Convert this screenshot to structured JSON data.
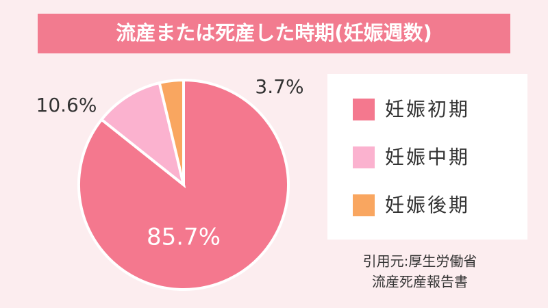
{
  "chart_data": {
    "type": "pie",
    "title": "流産または死産した時期(妊娠週数)",
    "categories": [
      "妊娠初期",
      "妊娠中期",
      "妊娠後期"
    ],
    "values": [
      85.7,
      10.6,
      3.7
    ],
    "value_labels": [
      "85.7%",
      "10.6%",
      "3.7%"
    ],
    "colors": [
      "#f4788e",
      "#fbb2cf",
      "#f9a660"
    ],
    "legend": "right",
    "source": [
      "引用元:厚生労働省",
      "流産死産報告書"
    ]
  }
}
